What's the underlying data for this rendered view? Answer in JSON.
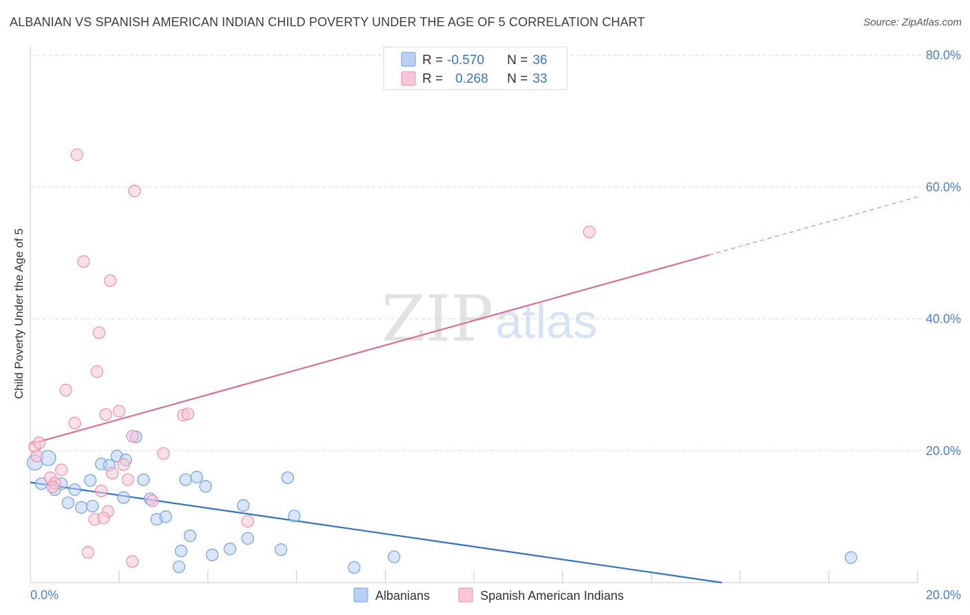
{
  "header": {
    "title": "ALBANIAN VS SPANISH AMERICAN INDIAN CHILD POVERTY UNDER THE AGE OF 5 CORRELATION CHART",
    "source": "Source: ZipAtlas.com"
  },
  "watermark": {
    "zip": "ZIP",
    "atlas": "atlas"
  },
  "colors": {
    "albanians": "#6fa0e6",
    "albanians_fill": "#b9d0f3",
    "albanians_line": "#2f6fd1",
    "spanish": "#ec8fae",
    "spanish_fill": "#f8c6d6",
    "spanish_line": "#e06b93",
    "axis_text": "#4a7fd0",
    "grid": "#d9d9d9"
  },
  "legend": {
    "rows": [
      {
        "r_label": "R =",
        "r_value": "-0.570",
        "n_label": "N =",
        "n_value": "36"
      },
      {
        "r_label": "R =",
        "r_value": "0.268",
        "n_label": "N =",
        "n_value": "33"
      }
    ]
  },
  "chart_data": {
    "type": "scatter",
    "title": "ALBANIAN VS SPANISH AMERICAN INDIAN CHILD POVERTY UNDER THE AGE OF 5 CORRELATION CHART",
    "xlabel": "",
    "ylabel": "Child Poverty Under the Age of 5",
    "xlim": [
      0,
      20
    ],
    "ylim": [
      0,
      80
    ],
    "x_tick_labels": [
      "0.0%",
      "20.0%"
    ],
    "y_ticks": [
      20,
      40,
      60,
      80
    ],
    "y_tick_labels": [
      "20.0%",
      "40.0%",
      "60.0%",
      "80.0%"
    ],
    "grid": true,
    "series": [
      {
        "name": "Albanians",
        "r": -0.57,
        "n": 36,
        "trend": {
          "x0": 0,
          "y0": 15.2,
          "x1": 20,
          "y1": -4.3,
          "solid_until": 20
        },
        "points": [
          [
            0.1,
            18.2
          ],
          [
            0.4,
            18.9
          ],
          [
            0.25,
            15.0
          ],
          [
            0.55,
            14.1
          ],
          [
            0.7,
            15.0
          ],
          [
            1.0,
            14.1
          ],
          [
            0.85,
            12.1
          ],
          [
            1.15,
            11.4
          ],
          [
            1.4,
            11.6
          ],
          [
            1.35,
            15.5
          ],
          [
            1.6,
            18.0
          ],
          [
            1.78,
            17.8
          ],
          [
            1.95,
            19.2
          ],
          [
            2.15,
            18.6
          ],
          [
            2.38,
            22.1
          ],
          [
            2.55,
            15.6
          ],
          [
            2.1,
            12.9
          ],
          [
            2.7,
            12.7
          ],
          [
            2.85,
            9.6
          ],
          [
            3.05,
            10.0
          ],
          [
            3.5,
            15.6
          ],
          [
            3.75,
            16.0
          ],
          [
            3.95,
            14.6
          ],
          [
            3.4,
            4.8
          ],
          [
            3.6,
            7.1
          ],
          [
            3.35,
            2.4
          ],
          [
            4.1,
            4.2
          ],
          [
            4.5,
            5.1
          ],
          [
            4.8,
            11.7
          ],
          [
            4.9,
            6.7
          ],
          [
            5.65,
            5.0
          ],
          [
            5.8,
            15.9
          ],
          [
            5.95,
            10.1
          ],
          [
            7.3,
            2.3
          ],
          [
            8.2,
            3.9
          ],
          [
            18.5,
            3.8
          ]
        ]
      },
      {
        "name": "Spanish American Indians",
        "r": 0.268,
        "n": 33,
        "trend": {
          "x0": 0,
          "y0": 21.0,
          "x1": 20,
          "y1": 58.5,
          "solid_until": 15.3
        },
        "points": [
          [
            0.1,
            20.6
          ],
          [
            0.2,
            21.2
          ],
          [
            0.15,
            19.2
          ],
          [
            0.45,
            15.9
          ],
          [
            0.55,
            15.1
          ],
          [
            0.5,
            14.5
          ],
          [
            0.7,
            17.1
          ],
          [
            0.8,
            29.2
          ],
          [
            1.0,
            24.2
          ],
          [
            1.5,
            32.0
          ],
          [
            1.7,
            25.5
          ],
          [
            1.55,
            37.9
          ],
          [
            1.8,
            45.8
          ],
          [
            1.2,
            48.7
          ],
          [
            1.05,
            64.9
          ],
          [
            2.35,
            59.4
          ],
          [
            2.0,
            26.0
          ],
          [
            2.3,
            22.2
          ],
          [
            1.85,
            16.6
          ],
          [
            2.1,
            17.9
          ],
          [
            2.2,
            15.6
          ],
          [
            1.6,
            13.9
          ],
          [
            1.75,
            10.8
          ],
          [
            1.45,
            9.6
          ],
          [
            1.65,
            9.8
          ],
          [
            1.3,
            4.6
          ],
          [
            2.3,
            3.2
          ],
          [
            2.75,
            12.4
          ],
          [
            3.0,
            19.6
          ],
          [
            3.45,
            25.4
          ],
          [
            3.55,
            25.6
          ],
          [
            4.9,
            9.3
          ],
          [
            12.6,
            53.2
          ]
        ]
      }
    ],
    "legend_labels": [
      "Albanians",
      "Spanish American Indians"
    ],
    "legend_position": "top-center",
    "r_values": [
      "-0.570",
      "0.268"
    ],
    "n_values": [
      "36",
      "33"
    ]
  }
}
